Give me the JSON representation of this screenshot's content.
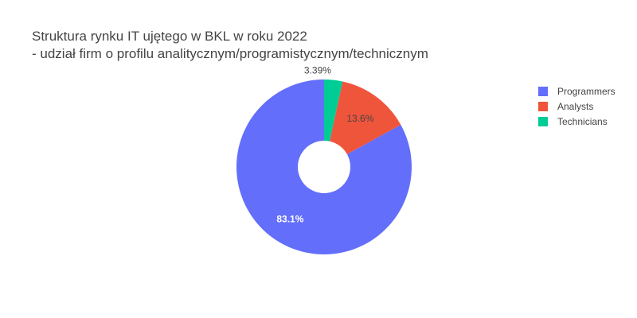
{
  "chart_data": {
    "type": "pie",
    "title": "Struktura rynku IT ujętego w BKL w roku 2022",
    "subtitle": "- udział firm o profilu analitycznym/programistycznym/technicznym",
    "hole": true,
    "legend_position": "top-right",
    "slices": [
      {
        "name": "Programmers",
        "value": 83.1,
        "label": "83.1%",
        "color": "#636efa",
        "label_color": "#ffffff",
        "label_weight": "bold"
      },
      {
        "name": "Analysts",
        "value": 13.6,
        "label": "13.6%",
        "color": "#ef553b",
        "label_color": "#444444",
        "label_weight": "normal"
      },
      {
        "name": "Technicians",
        "value": 3.39,
        "label": "3.39%",
        "color": "#00cc96",
        "label_color": "#444444",
        "label_weight": "normal"
      }
    ]
  }
}
